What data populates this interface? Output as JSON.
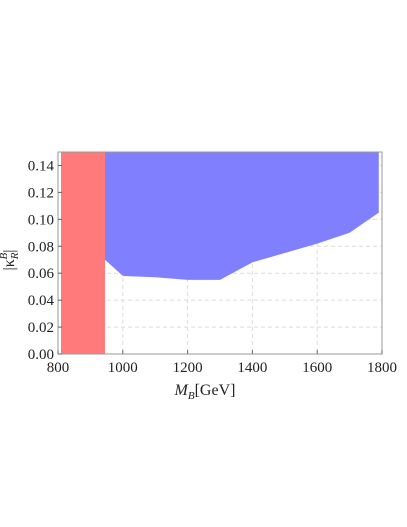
{
  "chart_data": {
    "type": "area",
    "xlim": [
      800,
      1800
    ],
    "ylim": [
      0.0,
      0.15
    ],
    "x_ticks": [
      800,
      1000,
      1200,
      1400,
      1600,
      1800
    ],
    "y_ticks": [
      0.0,
      0.02,
      0.04,
      0.06,
      0.08,
      0.1,
      0.12,
      0.14
    ],
    "x_tick_labels": [
      "800",
      "1000",
      "1200",
      "1400",
      "1600",
      "1800"
    ],
    "y_tick_labels": [
      "0.00",
      "0.02",
      "0.04",
      "0.06",
      "0.08",
      "0.10",
      "0.12",
      "0.14"
    ],
    "xlabel": {
      "main": "M",
      "sub": "B",
      "unit": "[GeV]"
    },
    "ylabel": {
      "prefix": "|κ",
      "sub": "R",
      "sup": "B",
      "suffix": "|"
    },
    "grid": true,
    "regions": [
      {
        "color": "#ff7b7b",
        "x_range": [
          800,
          945
        ],
        "y_range": [
          0.0,
          0.15
        ]
      },
      {
        "color": "#8080ff",
        "upper": 0.15,
        "lower_boundary": [
          {
            "x": 945,
            "y": 0.07
          },
          {
            "x": 1000,
            "y": 0.058
          },
          {
            "x": 1100,
            "y": 0.057
          },
          {
            "x": 1200,
            "y": 0.055
          },
          {
            "x": 1300,
            "y": 0.055
          },
          {
            "x": 1400,
            "y": 0.068
          },
          {
            "x": 1500,
            "y": 0.075
          },
          {
            "x": 1600,
            "y": 0.082
          },
          {
            "x": 1700,
            "y": 0.09
          },
          {
            "x": 1790,
            "y": 0.105
          },
          {
            "x": 1790,
            "y": 0.15
          }
        ]
      }
    ]
  }
}
